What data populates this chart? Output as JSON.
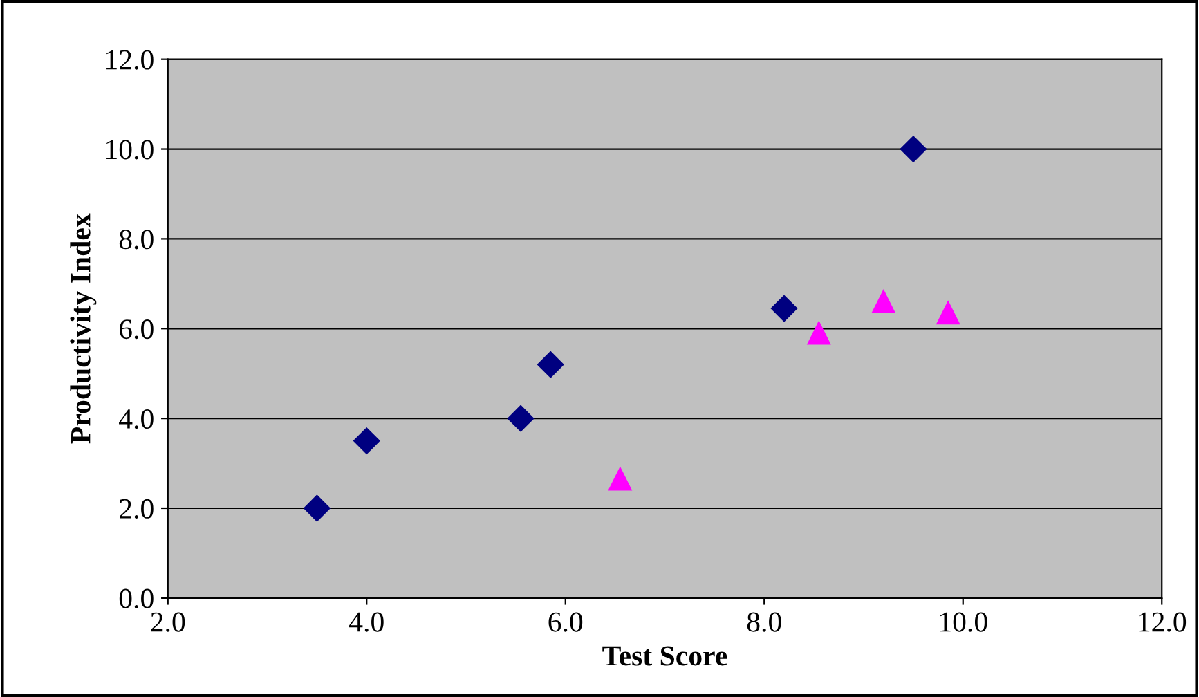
{
  "chart_data": {
    "type": "scatter",
    "xlabel": "Test Score",
    "ylabel": "Productivity Index",
    "series": [
      {
        "color": "#000080",
        "marker": "diamond",
        "x": [
          3.5,
          4.0,
          5.55,
          5.85,
          8.2,
          9.5
        ],
        "values": [
          2.0,
          3.5,
          4.0,
          5.2,
          6.45,
          10.0
        ]
      },
      {
        "color": "#ff00ff",
        "marker": "triangle",
        "x": [
          6.55,
          8.55,
          9.2,
          9.85
        ],
        "values": [
          2.65,
          5.9,
          6.6,
          6.35
        ]
      }
    ],
    "xlim": [
      2,
      12
    ],
    "ylim": [
      0,
      12
    ],
    "xticks": [
      {
        "value": 2,
        "label": "2.0"
      },
      {
        "value": 4,
        "label": "4.0"
      },
      {
        "value": 6,
        "label": "6.0"
      },
      {
        "value": 8,
        "label": "8.0"
      },
      {
        "value": 10,
        "label": "10.0"
      },
      {
        "value": 12,
        "label": "12.0"
      }
    ],
    "yticks": [
      {
        "value": 0,
        "label": "0.0"
      },
      {
        "value": 2,
        "label": "2.0"
      },
      {
        "value": 4,
        "label": "4.0"
      },
      {
        "value": 6,
        "label": "6.0"
      },
      {
        "value": 8,
        "label": "8.0"
      },
      {
        "value": 10,
        "label": "10.0"
      },
      {
        "value": 12,
        "label": "12.0"
      }
    ],
    "grid": "y"
  }
}
